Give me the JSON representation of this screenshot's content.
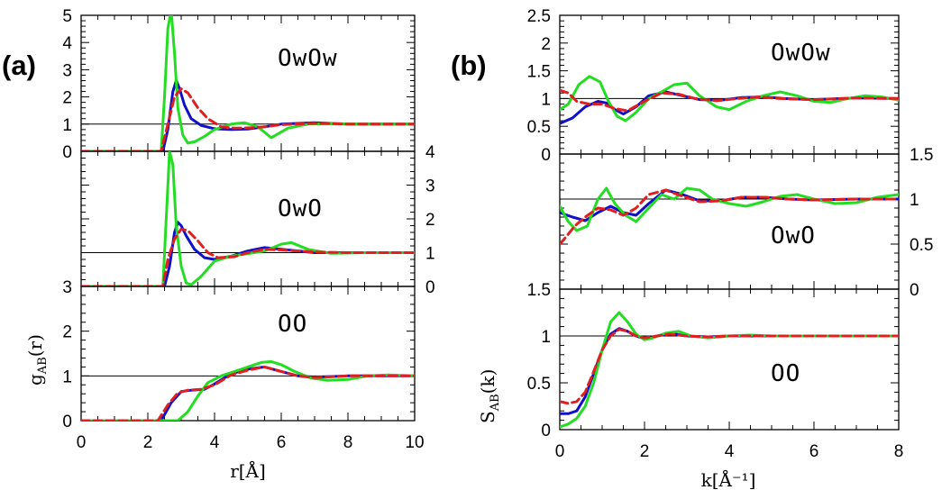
{
  "chart_data": [
    {
      "type": "line",
      "figure_label": "(a)",
      "xlabel": "r[Å]",
      "ylabel": "g_AB(r)",
      "ylabel_main": "g",
      "ylabel_sub": "AB",
      "ylabel_tail": "(r)",
      "xlim": [
        0,
        10
      ],
      "xticks": [
        "0",
        "2",
        "4",
        "6",
        "8",
        "10"
      ],
      "colors": {
        "blue": "#1010c8",
        "red": "#e02020",
        "green": "#22dd22"
      },
      "panels": [
        {
          "name": "OwOw",
          "ylim": [
            0,
            5
          ],
          "yticks": [
            "0",
            "1",
            "2",
            "3",
            "4",
            "5"
          ],
          "tick_side": "left",
          "reference": 1,
          "series": [
            {
              "name": "blue",
              "x": [
                0,
                2.45,
                2.6,
                2.75,
                2.85,
                2.95,
                3.1,
                3.3,
                3.6,
                4.0,
                4.5,
                5.0,
                5.5,
                6.0,
                7.0,
                8.0,
                10.0
              ],
              "y": [
                0,
                0,
                0.8,
                2.2,
                2.6,
                2.3,
                1.7,
                1.2,
                0.95,
                0.83,
                0.8,
                0.82,
                0.9,
                1.0,
                1.05,
                1.0,
                1.0
              ]
            },
            {
              "name": "red",
              "x": [
                0,
                2.4,
                2.6,
                2.8,
                3.0,
                3.2,
                3.5,
                3.8,
                4.2,
                4.6,
                5.0,
                5.5,
                6.0,
                7.0,
                8.0,
                10.0
              ],
              "y": [
                0,
                0,
                1.0,
                2.0,
                2.3,
                2.15,
                1.6,
                1.2,
                0.9,
                0.85,
                0.86,
                0.9,
                0.98,
                1.03,
                1.0,
                1.0
              ]
            },
            {
              "name": "green",
              "x": [
                0,
                2.4,
                2.5,
                2.6,
                2.7,
                2.8,
                2.9,
                3.05,
                3.2,
                3.4,
                3.7,
                4.0,
                4.5,
                4.9,
                5.3,
                5.7,
                6.2,
                6.8,
                7.5,
                8.5,
                10.0
              ],
              "y": [
                0,
                0,
                2.0,
                4.5,
                5.2,
                3.6,
                1.6,
                0.6,
                0.3,
                0.35,
                0.55,
                0.8,
                1.0,
                1.05,
                0.9,
                0.5,
                0.85,
                1.0,
                1.02,
                1.0,
                1.0
              ]
            }
          ]
        },
        {
          "name": "OwO",
          "ylim": [
            0,
            4
          ],
          "yticks": [
            "0",
            "1",
            "2",
            "3",
            "4"
          ],
          "tick_side": "right",
          "reference": 1,
          "series": [
            {
              "name": "blue",
              "x": [
                0,
                2.5,
                2.65,
                2.8,
                2.9,
                3.0,
                3.15,
                3.4,
                3.7,
                4.0,
                4.5,
                5.0,
                5.5,
                6.0,
                7.0,
                8.0,
                10.0
              ],
              "y": [
                0,
                0,
                0.6,
                1.6,
                1.9,
                1.8,
                1.5,
                1.1,
                0.85,
                0.8,
                0.9,
                1.05,
                1.15,
                1.1,
                1.0,
                1.0,
                1.0
              ]
            },
            {
              "name": "red",
              "x": [
                0,
                2.45,
                2.6,
                2.8,
                3.0,
                3.2,
                3.5,
                3.8,
                4.1,
                4.6,
                5.0,
                5.5,
                6.0,
                7.0,
                8.0,
                10.0
              ],
              "y": [
                0,
                0,
                0.8,
                1.4,
                1.7,
                1.65,
                1.35,
                1.0,
                0.85,
                0.88,
                1.0,
                1.1,
                1.08,
                1.02,
                1.0,
                1.0
              ]
            },
            {
              "name": "green",
              "x": [
                0,
                2.45,
                2.55,
                2.65,
                2.75,
                2.85,
                3.0,
                3.15,
                3.3,
                3.6,
                4.0,
                4.5,
                5.0,
                5.5,
                6.0,
                6.3,
                6.8,
                7.5,
                8.5,
                10.0
              ],
              "y": [
                0,
                0,
                2.0,
                4.0,
                3.6,
                1.8,
                0.6,
                0.1,
                0.05,
                0.3,
                0.75,
                0.9,
                0.97,
                1.05,
                1.25,
                1.3,
                1.1,
                0.98,
                1.0,
                1.0
              ]
            }
          ]
        },
        {
          "name": "OO",
          "ylim": [
            0,
            3
          ],
          "yticks": [
            "0",
            "1",
            "2",
            "3"
          ],
          "tick_side": "left",
          "reference": 1,
          "series": [
            {
              "name": "blue",
              "x": [
                0,
                2.4,
                2.7,
                3.0,
                3.3,
                3.7,
                4.0,
                4.5,
                5.0,
                5.5,
                6.0,
                6.5,
                7.0,
                8.0,
                10.0
              ],
              "y": [
                0,
                0,
                0.4,
                0.65,
                0.68,
                0.7,
                0.82,
                1.05,
                1.15,
                1.2,
                1.1,
                1.0,
                0.97,
                1.0,
                1.0
              ]
            },
            {
              "name": "red",
              "x": [
                0,
                2.3,
                2.6,
                2.9,
                3.2,
                3.6,
                4.0,
                4.5,
                5.0,
                5.5,
                6.0,
                6.5,
                7.0,
                8.0,
                10.0
              ],
              "y": [
                0,
                0,
                0.35,
                0.62,
                0.68,
                0.7,
                0.8,
                1.02,
                1.13,
                1.2,
                1.1,
                1.0,
                0.96,
                1.0,
                1.0
              ]
            },
            {
              "name": "green",
              "x": [
                0,
                2.9,
                3.2,
                3.5,
                3.8,
                4.2,
                4.6,
                5.0,
                5.4,
                5.7,
                6.0,
                6.4,
                6.9,
                7.4,
                8.0,
                8.6,
                9.2,
                10.0
              ],
              "y": [
                0,
                0,
                0.2,
                0.55,
                0.85,
                1.0,
                1.1,
                1.2,
                1.3,
                1.32,
                1.25,
                1.1,
                0.95,
                0.9,
                0.92,
                1.0,
                1.02,
                1.0
              ]
            }
          ]
        }
      ]
    },
    {
      "type": "line",
      "figure_label": "(b)",
      "xlabel": "k[Å⁻¹]",
      "ylabel": "S_AB(k)",
      "ylabel_main": "S",
      "ylabel_sub": "AB",
      "ylabel_tail": "(k)",
      "xlim": [
        0,
        8
      ],
      "xticks": [
        "0",
        "2",
        "4",
        "6",
        "8"
      ],
      "colors": {
        "blue": "#1010c8",
        "red": "#e02020",
        "green": "#22dd22"
      },
      "panels": [
        {
          "name": "OwOw",
          "ylim": [
            0,
            2.5
          ],
          "yticks": [
            "0",
            "0.5",
            "1",
            "1.5",
            "2",
            "2.5"
          ],
          "tick_side": "left",
          "reference": 1,
          "series": [
            {
              "name": "blue",
              "x": [
                0,
                0.3,
                0.6,
                0.9,
                1.1,
                1.3,
                1.5,
                1.8,
                2.1,
                2.5,
                2.9,
                3.3,
                3.8,
                4.3,
                4.8,
                5.3,
                6.0,
                7.0,
                8.0
              ],
              "y": [
                0.55,
                0.65,
                0.85,
                0.95,
                0.92,
                0.8,
                0.72,
                0.85,
                1.05,
                1.12,
                1.05,
                0.98,
                0.97,
                1.02,
                1.03,
                1.0,
                0.98,
                1.01,
                1.0
              ]
            },
            {
              "name": "red",
              "x": [
                0,
                0.2,
                0.4,
                0.7,
                1.0,
                1.3,
                1.6,
                2.0,
                2.4,
                2.8,
                3.2,
                3.7,
                4.2,
                4.7,
                5.2,
                6.0,
                7.0,
                8.0
              ],
              "y": [
                1.15,
                1.1,
                0.95,
                0.9,
                0.9,
                0.82,
                0.78,
                0.95,
                1.1,
                1.08,
                1.0,
                0.96,
                1.0,
                1.03,
                1.0,
                0.98,
                1.01,
                1.0
              ]
            },
            {
              "name": "green",
              "x": [
                0,
                0.2,
                0.45,
                0.7,
                0.95,
                1.15,
                1.35,
                1.55,
                1.8,
                2.1,
                2.4,
                2.7,
                3.0,
                3.3,
                3.7,
                4.0,
                4.4,
                4.8,
                5.2,
                5.6,
                6.0,
                6.4,
                6.8,
                7.2,
                7.6,
                8.0
              ],
              "y": [
                0.8,
                0.9,
                1.25,
                1.4,
                1.3,
                0.95,
                0.68,
                0.6,
                0.75,
                1.0,
                1.12,
                1.25,
                1.28,
                1.05,
                0.85,
                0.8,
                0.95,
                1.05,
                1.12,
                1.05,
                0.95,
                0.93,
                1.0,
                1.05,
                1.03,
                0.97
              ]
            }
          ]
        },
        {
          "name": "OwO",
          "ylim": [
            0,
            1.5
          ],
          "yticks": [
            "0",
            "0.5",
            "1",
            "1.5"
          ],
          "tick_side": "right",
          "reference": 1,
          "series": [
            {
              "name": "blue",
              "x": [
                0,
                0.3,
                0.6,
                0.9,
                1.2,
                1.5,
                1.8,
                2.1,
                2.5,
                2.9,
                3.3,
                3.8,
                4.3,
                4.8,
                5.4,
                6.0,
                7.0,
                8.0
              ],
              "y": [
                0.85,
                0.8,
                0.76,
                0.85,
                0.92,
                0.85,
                0.82,
                0.95,
                1.1,
                1.05,
                0.98,
                0.98,
                1.02,
                1.02,
                1.0,
                0.99,
                1.0,
                1.0
              ]
            },
            {
              "name": "red",
              "x": [
                0,
                0.15,
                0.35,
                0.6,
                0.9,
                1.2,
                1.5,
                1.8,
                2.1,
                2.5,
                2.9,
                3.3,
                3.8,
                4.3,
                4.8,
                5.4,
                6.0,
                7.0,
                8.0
              ],
              "y": [
                0.5,
                0.58,
                0.7,
                0.8,
                0.9,
                0.88,
                0.82,
                0.9,
                1.05,
                1.1,
                1.03,
                0.97,
                0.98,
                1.02,
                1.02,
                1.0,
                0.99,
                1.0,
                1.0
              ]
            },
            {
              "name": "green",
              "x": [
                0,
                0.2,
                0.4,
                0.65,
                0.9,
                1.1,
                1.3,
                1.55,
                1.8,
                2.1,
                2.4,
                2.7,
                3.0,
                3.3,
                3.6,
                4.0,
                4.4,
                4.8,
                5.2,
                5.6,
                6.0,
                6.5,
                7.0,
                7.5,
                8.0
              ],
              "y": [
                0.92,
                0.75,
                0.65,
                0.7,
                1.0,
                1.12,
                0.95,
                0.82,
                0.75,
                0.9,
                1.05,
                1.0,
                1.12,
                1.1,
                1.0,
                0.95,
                0.92,
                0.97,
                1.03,
                1.05,
                1.0,
                0.95,
                0.96,
                1.02,
                1.05
              ]
            }
          ]
        },
        {
          "name": "OO",
          "ylim": [
            0,
            1.5
          ],
          "yticks": [
            "0",
            "0.5",
            "1",
            "1.5"
          ],
          "tick_side": "left",
          "reference": 1,
          "series": [
            {
              "name": "blue",
              "x": [
                0,
                0.2,
                0.4,
                0.6,
                0.8,
                1.0,
                1.2,
                1.4,
                1.6,
                1.8,
                2.0,
                2.3,
                2.6,
                3.0,
                3.5,
                4.0,
                5.0,
                6.0,
                8.0
              ],
              "y": [
                0.17,
                0.17,
                0.2,
                0.35,
                0.6,
                0.85,
                1.02,
                1.08,
                1.05,
                1.0,
                0.97,
                1.0,
                1.03,
                1.0,
                0.99,
                1.0,
                1.0,
                1.0,
                1.0
              ]
            },
            {
              "name": "red",
              "x": [
                0,
                0.2,
                0.4,
                0.6,
                0.8,
                1.0,
                1.2,
                1.4,
                1.6,
                1.8,
                2.0,
                2.3,
                2.6,
                3.0,
                3.5,
                4.0,
                5.0,
                6.0,
                8.0
              ],
              "y": [
                0.3,
                0.28,
                0.3,
                0.4,
                0.62,
                0.85,
                1.0,
                1.07,
                1.05,
                1.0,
                0.98,
                1.0,
                1.02,
                1.0,
                0.99,
                1.0,
                1.0,
                1.0,
                1.0
              ]
            },
            {
              "name": "green",
              "x": [
                0,
                0.2,
                0.4,
                0.6,
                0.8,
                1.0,
                1.2,
                1.4,
                1.6,
                1.8,
                2.0,
                2.2,
                2.5,
                2.8,
                3.1,
                3.5,
                4.0,
                4.5,
                5.0,
                6.0,
                8.0
              ],
              "y": [
                0.03,
                0.06,
                0.12,
                0.25,
                0.5,
                0.85,
                1.15,
                1.25,
                1.15,
                1.02,
                0.96,
                0.98,
                1.03,
                1.05,
                1.0,
                0.98,
                1.0,
                1.01,
                1.0,
                1.0,
                1.0
              ]
            }
          ]
        }
      ]
    }
  ]
}
